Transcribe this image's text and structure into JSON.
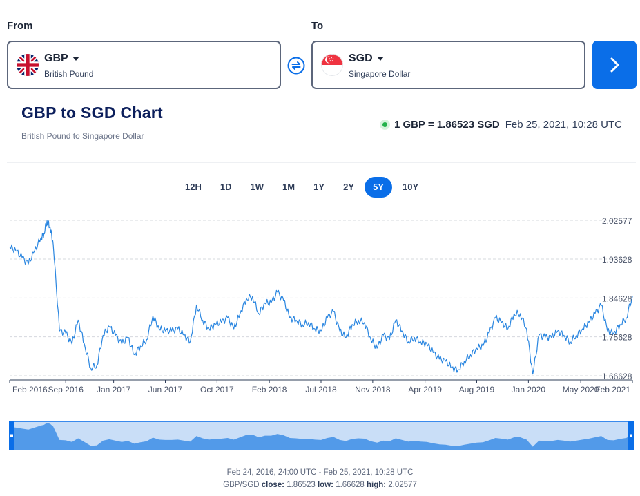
{
  "from": {
    "label": "From",
    "code": "GBP",
    "name": "British Pound"
  },
  "to": {
    "label": "To",
    "code": "SGD",
    "name": "Singapore Dollar"
  },
  "chart_title": "GBP to SGD Chart",
  "chart_subtitle": "British Pound to Singapore Dollar",
  "rate": {
    "text": "1 GBP = 1.86523 SGD",
    "timestamp": "Feb 25, 2021, 10:28 UTC"
  },
  "ranges": [
    "12H",
    "1D",
    "1W",
    "1M",
    "1Y",
    "2Y",
    "5Y",
    "10Y"
  ],
  "active_range": "5Y",
  "colors": {
    "accent": "#0a6ee8",
    "line": "#2a86e0",
    "live": "#23b24b",
    "title": "#0b1e5b"
  },
  "footer": {
    "range_text": "Feb 24, 2016, 24:00 UTC - Feb 25, 2021, 10:28 UTC",
    "pair": "GBP/SGD",
    "close_label": "close:",
    "close": "1.86523",
    "low_label": "low:",
    "low": "1.66628",
    "high_label": "high:",
    "high": "2.02577"
  },
  "chart_data": {
    "type": "line",
    "title": "GBP to SGD Chart",
    "ylim": [
      1.66628,
      2.02577
    ],
    "yticks": [
      "2.02577",
      "1.93628",
      "1.84628",
      "1.75628",
      "1.66628"
    ],
    "ytick_values": [
      2.02577,
      1.93628,
      1.84628,
      1.75628,
      1.66628
    ],
    "xticks": [
      "Feb 2016",
      "Sep 2016",
      "Jan 2017",
      "Jun 2017",
      "Oct 2017",
      "Feb 2018",
      "Jul 2018",
      "Nov 2018",
      "Apr 2019",
      "Aug 2019",
      "Jan 2020",
      "May 2020",
      "Feb 2021"
    ],
    "xtick_positions": [
      0,
      0.09,
      0.167,
      0.25,
      0.333,
      0.417,
      0.5,
      0.583,
      0.667,
      0.75,
      0.833,
      0.917,
      1.0
    ],
    "series": [
      {
        "name": "GBP/SGD",
        "x": [
          0,
          0.01,
          0.02,
          0.03,
          0.04,
          0.05,
          0.055,
          0.06,
          0.065,
          0.07,
          0.08,
          0.09,
          0.1,
          0.11,
          0.12,
          0.13,
          0.14,
          0.15,
          0.16,
          0.17,
          0.18,
          0.19,
          0.2,
          0.21,
          0.22,
          0.23,
          0.24,
          0.25,
          0.26,
          0.27,
          0.28,
          0.29,
          0.3,
          0.31,
          0.32,
          0.33,
          0.34,
          0.35,
          0.36,
          0.37,
          0.38,
          0.39,
          0.4,
          0.41,
          0.42,
          0.43,
          0.44,
          0.45,
          0.46,
          0.47,
          0.48,
          0.49,
          0.5,
          0.51,
          0.52,
          0.53,
          0.54,
          0.55,
          0.56,
          0.57,
          0.58,
          0.59,
          0.6,
          0.61,
          0.62,
          0.63,
          0.64,
          0.65,
          0.66,
          0.67,
          0.68,
          0.69,
          0.7,
          0.71,
          0.72,
          0.73,
          0.74,
          0.75,
          0.76,
          0.77,
          0.78,
          0.79,
          0.8,
          0.81,
          0.82,
          0.83,
          0.84,
          0.85,
          0.86,
          0.87,
          0.88,
          0.89,
          0.9,
          0.91,
          0.92,
          0.93,
          0.94,
          0.95,
          0.96,
          0.97,
          0.98,
          0.99,
          1.0
        ],
        "values": [
          1.965,
          1.955,
          1.94,
          1.925,
          1.955,
          1.985,
          1.995,
          2.025,
          2.01,
          1.97,
          1.77,
          1.765,
          1.74,
          1.795,
          1.74,
          1.685,
          1.69,
          1.76,
          1.78,
          1.76,
          1.74,
          1.755,
          1.715,
          1.735,
          1.75,
          1.805,
          1.775,
          1.77,
          1.77,
          1.775,
          1.76,
          1.745,
          1.83,
          1.795,
          1.775,
          1.785,
          1.79,
          1.8,
          1.775,
          1.81,
          1.845,
          1.85,
          1.81,
          1.835,
          1.835,
          1.86,
          1.84,
          1.8,
          1.795,
          1.785,
          1.79,
          1.775,
          1.77,
          1.8,
          1.815,
          1.77,
          1.755,
          1.785,
          1.795,
          1.79,
          1.75,
          1.73,
          1.76,
          1.75,
          1.795,
          1.77,
          1.745,
          1.755,
          1.745,
          1.74,
          1.72,
          1.705,
          1.7,
          1.685,
          1.68,
          1.7,
          1.715,
          1.73,
          1.735,
          1.765,
          1.8,
          1.79,
          1.775,
          1.81,
          1.81,
          1.775,
          1.67,
          1.76,
          1.755,
          1.755,
          1.77,
          1.76,
          1.745,
          1.76,
          1.775,
          1.79,
          1.81,
          1.83,
          1.77,
          1.765,
          1.785,
          1.8,
          1.85
        ]
      }
    ]
  }
}
